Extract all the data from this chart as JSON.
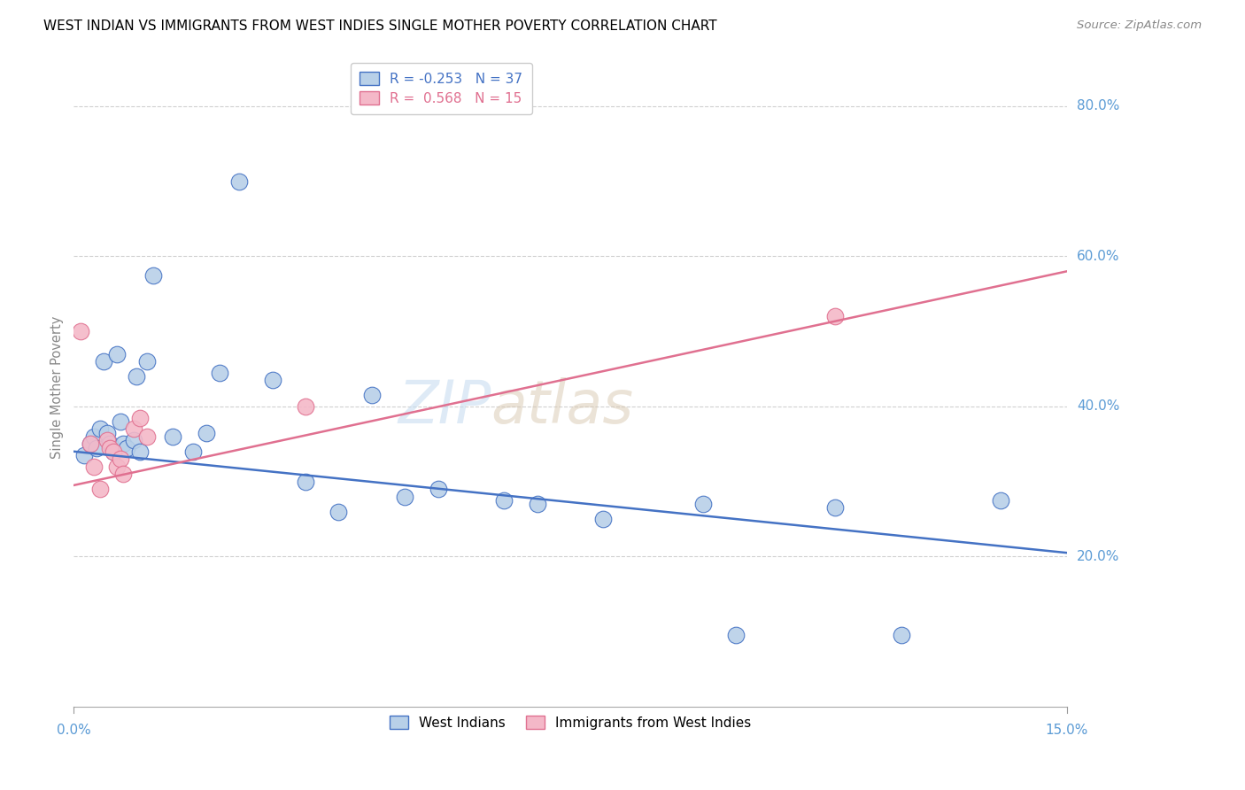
{
  "title": "WEST INDIAN VS IMMIGRANTS FROM WEST INDIES SINGLE MOTHER POVERTY CORRELATION CHART",
  "source": "Source: ZipAtlas.com",
  "ylabel": "Single Mother Poverty",
  "ytick_positions": [
    20.0,
    40.0,
    60.0,
    80.0
  ],
  "ytick_labels": [
    "20.0%",
    "40.0%",
    "60.0%",
    "80.0%"
  ],
  "xlim": [
    0.0,
    15.0
  ],
  "ylim": [
    0.0,
    85.0
  ],
  "xtick_positions": [
    0.0,
    15.0
  ],
  "xtick_labels": [
    "0.0%",
    "15.0%"
  ],
  "legend_blue_r": "-0.253",
  "legend_blue_n": "37",
  "legend_pink_r": "0.568",
  "legend_pink_n": "15",
  "blue_fill": "#b8d0e8",
  "blue_edge": "#4472c4",
  "pink_fill": "#f4b8c8",
  "pink_edge": "#e07090",
  "blue_line": "#4472c4",
  "pink_line": "#e07090",
  "tick_label_color": "#5b9bd5",
  "grid_color": "#d0d0d0",
  "watermark_color": "#c8ddf0",
  "blue_reg_x0": 0.0,
  "blue_reg_y0": 34.0,
  "blue_reg_x1": 15.0,
  "blue_reg_y1": 20.5,
  "pink_reg_x0": 0.0,
  "pink_reg_y0": 29.5,
  "pink_reg_x1": 15.0,
  "pink_reg_y1": 58.0,
  "west_indians_x": [
    0.15,
    0.25,
    0.3,
    0.35,
    0.4,
    0.45,
    0.5,
    0.55,
    0.6,
    0.65,
    0.7,
    0.75,
    0.8,
    0.9,
    0.95,
    1.0,
    1.1,
    1.2,
    1.5,
    1.8,
    2.0,
    2.2,
    2.5,
    3.0,
    3.5,
    4.0,
    4.5,
    5.0,
    5.5,
    6.5,
    7.0,
    8.0,
    9.5,
    10.0,
    11.5,
    12.5,
    14.0
  ],
  "west_indians_y": [
    33.5,
    35.0,
    36.0,
    34.5,
    37.0,
    46.0,
    36.5,
    35.0,
    34.0,
    47.0,
    38.0,
    35.0,
    34.5,
    35.5,
    44.0,
    34.0,
    46.0,
    57.5,
    36.0,
    34.0,
    36.5,
    44.5,
    70.0,
    43.5,
    30.0,
    26.0,
    41.5,
    28.0,
    29.0,
    27.5,
    27.0,
    25.0,
    27.0,
    9.5,
    26.5,
    9.5,
    27.5
  ],
  "immigrants_x": [
    0.1,
    0.25,
    0.3,
    0.4,
    0.5,
    0.55,
    0.6,
    0.65,
    0.7,
    0.75,
    0.9,
    1.0,
    1.1,
    3.5,
    11.5
  ],
  "immigrants_y": [
    50.0,
    35.0,
    32.0,
    29.0,
    35.5,
    34.5,
    34.0,
    32.0,
    33.0,
    31.0,
    37.0,
    38.5,
    36.0,
    40.0,
    52.0
  ]
}
